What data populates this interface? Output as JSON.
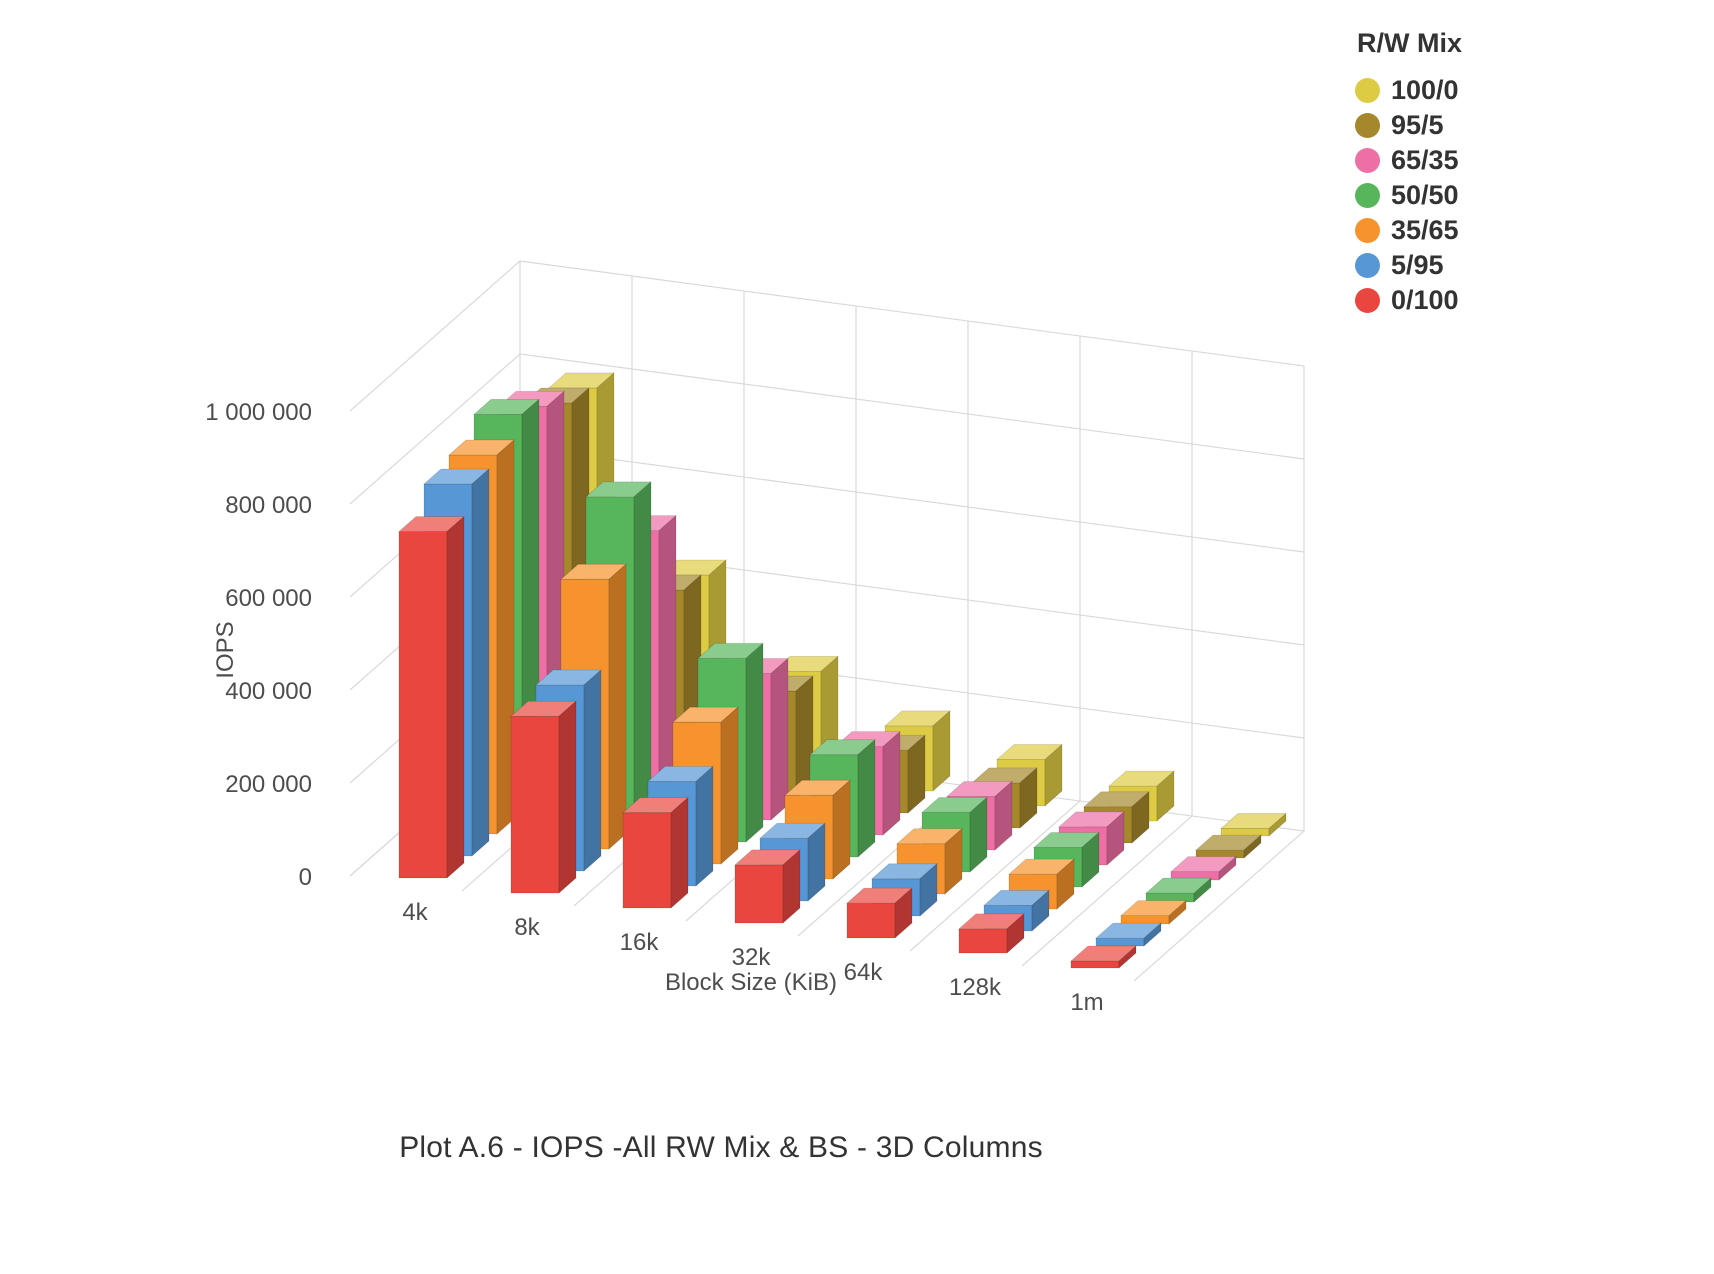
{
  "title": "Plot A.6 - IOPS -All RW Mix & BS - 3D Columns",
  "legend": {
    "title": "R/W Mix"
  },
  "chart_data": {
    "type": "bar",
    "subtype": "3d-columns",
    "title": "Plot A.6 - IOPS -All RW Mix & BS - 3D Columns",
    "xlabel": "Block Size (KiB)",
    "ylabel": "IOPS",
    "categories": [
      "4k",
      "8k",
      "16k",
      "32k",
      "64k",
      "128k",
      "1m"
    ],
    "ylim": [
      0,
      1000000
    ],
    "ytick_step": 200000,
    "ytick_labels": [
      "0",
      "200 000",
      "400 000",
      "600 000",
      "800 000",
      "1 000 000"
    ],
    "grid": true,
    "legend_position": "top-right",
    "series": [
      {
        "name": "100/0",
        "color": "#decb44",
        "values": [
          770000,
          400000,
          225000,
          140000,
          100000,
          75000,
          16000
        ]
      },
      {
        "name": "95/5",
        "color": "#a5882c",
        "values": [
          785000,
          415000,
          230000,
          135000,
          97000,
          78000,
          17000
        ]
      },
      {
        "name": "65/35",
        "color": "#ee6fa5",
        "values": [
          825000,
          590000,
          315000,
          190000,
          115000,
          82000,
          18000
        ]
      },
      {
        "name": "50/50",
        "color": "#57b65c",
        "values": [
          855000,
          710000,
          395000,
          220000,
          128000,
          85000,
          19000
        ]
      },
      {
        "name": "35/65",
        "color": "#f6932c",
        "values": [
          815000,
          580000,
          305000,
          180000,
          108000,
          75000,
          18000
        ]
      },
      {
        "name": "5/95",
        "color": "#5797d6",
        "values": [
          800000,
          400000,
          225000,
          135000,
          80000,
          55000,
          17000
        ]
      },
      {
        "name": "0/100",
        "color": "#e9463f",
        "values": [
          745000,
          380000,
          205000,
          125000,
          75000,
          52000,
          15000
        ]
      }
    ]
  }
}
